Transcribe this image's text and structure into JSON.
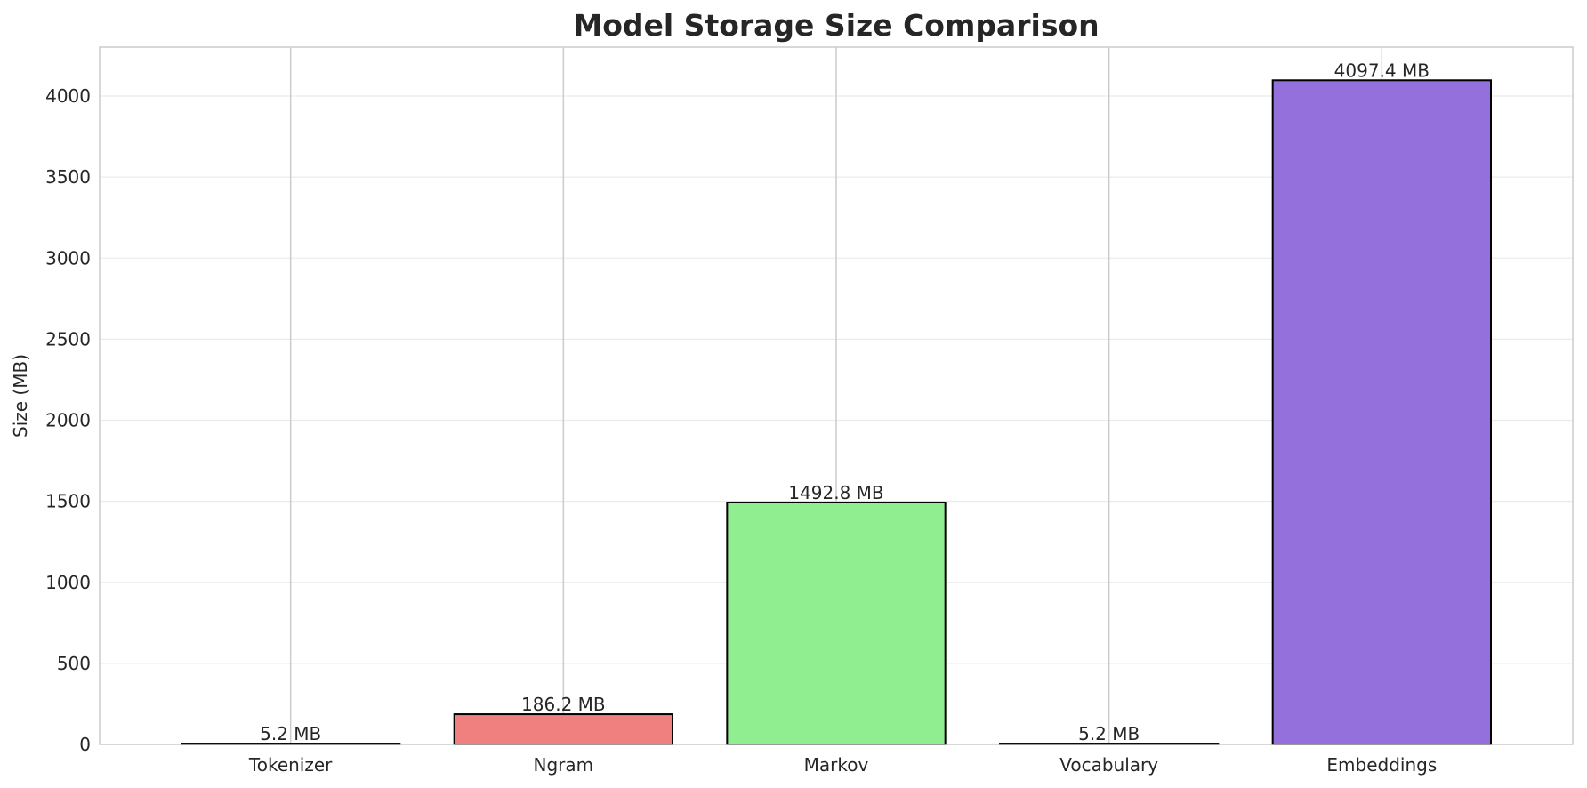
{
  "chart_data": {
    "type": "bar",
    "title": "Model Storage Size Comparison",
    "xlabel": "",
    "ylabel": "Size (MB)",
    "categories": [
      "Tokenizer",
      "Ngram",
      "Markov",
      "Vocabulary",
      "Embeddings"
    ],
    "values": [
      5.2,
      186.2,
      1492.8,
      5.2,
      4097.4
    ],
    "data_labels": [
      "5.2 MB",
      "186.2 MB",
      "1492.8 MB",
      "5.2 MB",
      "4097.4 MB"
    ],
    "colors": [
      "#87ceeb",
      "#f08080",
      "#90ee90",
      "#dda0dd",
      "#9370db"
    ],
    "edge_color": "#000000",
    "ylim": [
      0,
      4302
    ],
    "yticks": [
      0,
      500,
      1000,
      1500,
      2000,
      2500,
      3000,
      3500,
      4000
    ],
    "grid": true,
    "legend": "none"
  }
}
